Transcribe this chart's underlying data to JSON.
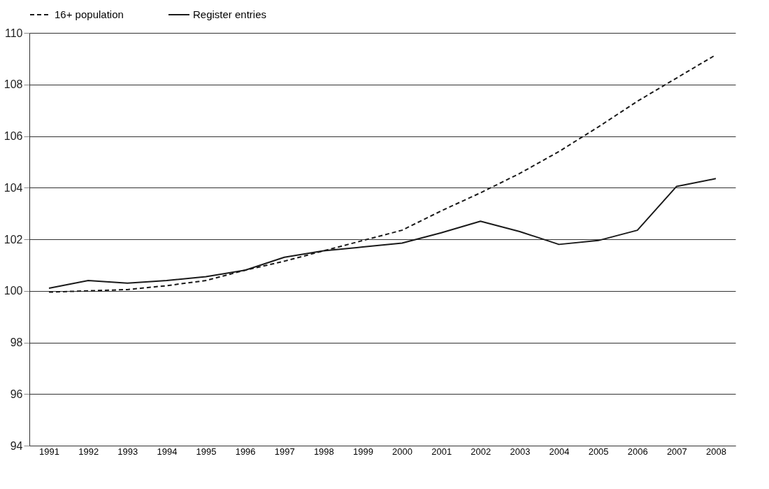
{
  "chart_data": {
    "type": "line",
    "categories": [
      "1991",
      "1992",
      "1993",
      "1994",
      "1995",
      "1996",
      "1997",
      "1998",
      "1999",
      "2000",
      "2001",
      "2002",
      "2003",
      "2004",
      "2005",
      "2006",
      "2007",
      "2008"
    ],
    "series": [
      {
        "name": "16+ population",
        "color": "#1a1a1a",
        "line_style": "dashed",
        "values": [
          99.95,
          100.0,
          100.05,
          100.2,
          100.4,
          100.8,
          101.15,
          101.55,
          101.95,
          102.35,
          103.1,
          103.8,
          104.55,
          105.4,
          106.35,
          107.35,
          108.25,
          109.15
        ]
      },
      {
        "name": "Register entries",
        "color": "#1a1a1a",
        "line_style": "solid",
        "values": [
          100.1,
          100.4,
          100.3,
          100.4,
          100.55,
          100.8,
          101.3,
          101.55,
          101.7,
          101.85,
          102.25,
          102.7,
          102.3,
          101.8,
          101.95,
          102.35,
          104.05,
          104.35
        ]
      }
    ],
    "ylim": [
      94,
      110
    ],
    "yticks": [
      94,
      96,
      98,
      100,
      102,
      104,
      106,
      108,
      110
    ],
    "grid": "y",
    "legend": "top",
    "marker": "none"
  }
}
